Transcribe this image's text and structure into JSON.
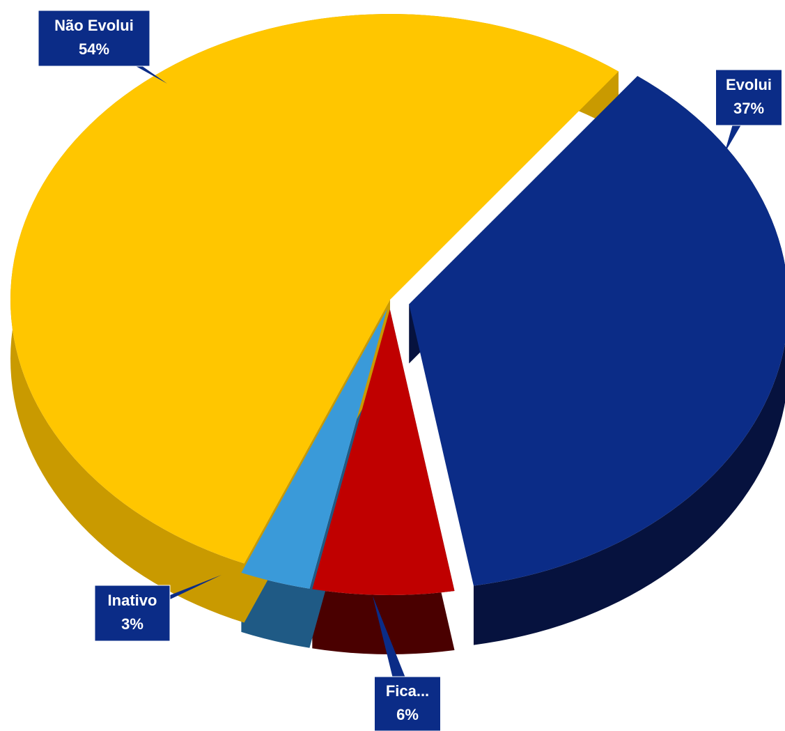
{
  "chart_data": {
    "type": "pie",
    "categories": [
      "Evolui",
      "Fica...",
      "Inativo",
      "Não Evolui"
    ],
    "values": [
      37,
      6,
      3,
      54
    ],
    "value_labels": [
      "37%",
      "6%",
      "3%",
      "54%"
    ],
    "colors": [
      "#0B2C87",
      "#C00000",
      "#3A9AD9",
      "#FFC600"
    ],
    "side_colors": [
      "#06123E",
      "#4A0000",
      "#1F5A85",
      "#C99A00"
    ]
  }
}
